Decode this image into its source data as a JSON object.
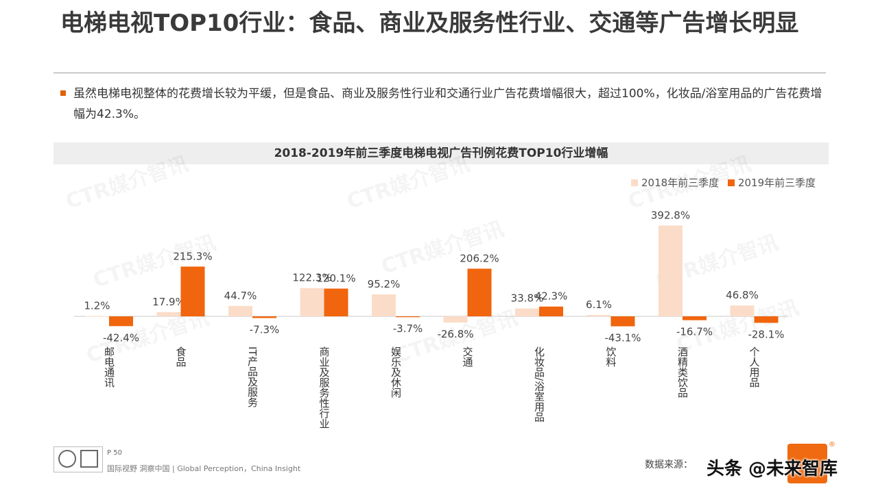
{
  "title": "电梯电视TOP10行业：食品、商业及服务性行业、交通等广告增长明显",
  "bullet": "虽然电梯电视整体的花费增长较为平缓，但是食品、商业及服务性行业和交通行业广告花费增幅很大，超过100%，化妆品/浴室用品的广告花费增幅为42.3%。",
  "watermark": "CTR媒介智讯",
  "chart_data": {
    "type": "bar",
    "title": "2018-2019年前三季度电梯电视广告刊例花费TOP10行业增幅",
    "categories": [
      "邮电通讯",
      "食品",
      "IT产品及服务",
      "商业及服务性行业",
      "娱乐及休闲",
      "交通",
      "化妆品/浴室用品",
      "饮料",
      "酒精类饮品",
      "个人用品"
    ],
    "series": [
      {
        "name": "2018年前三季度",
        "values": [
          1.2,
          17.9,
          44.7,
          122.3,
          95.2,
          -26.8,
          33.8,
          6.1,
          392.8,
          46.8
        ],
        "labels": [
          "1.2%",
          "17.9%",
          "44.7%",
          "122.3%",
          "95.2%",
          "-26.8%",
          "33.8%",
          "6.1%",
          "392.8%",
          "46.8%"
        ],
        "color": "#fbdcc8"
      },
      {
        "name": "2019年前三季度",
        "values": [
          -42.4,
          215.3,
          -7.3,
          120.1,
          -3.7,
          206.2,
          42.3,
          -43.1,
          -16.7,
          -28.1
        ],
        "labels": [
          "-42.4%",
          "215.3%",
          "-7.3%",
          "120.1%",
          "-3.7%",
          "206.2%",
          "42.3%",
          "-43.1%",
          "-16.7%",
          "-28.1%"
        ],
        "color": "#f0650d"
      }
    ],
    "legend": "top-right",
    "grid": false
  },
  "footer": {
    "page": "P 50",
    "tagline": "国际视野  洞察中国 | Global Perception，China Insight",
    "source": "数据来源：",
    "overlay": "头条 @未来智库"
  }
}
